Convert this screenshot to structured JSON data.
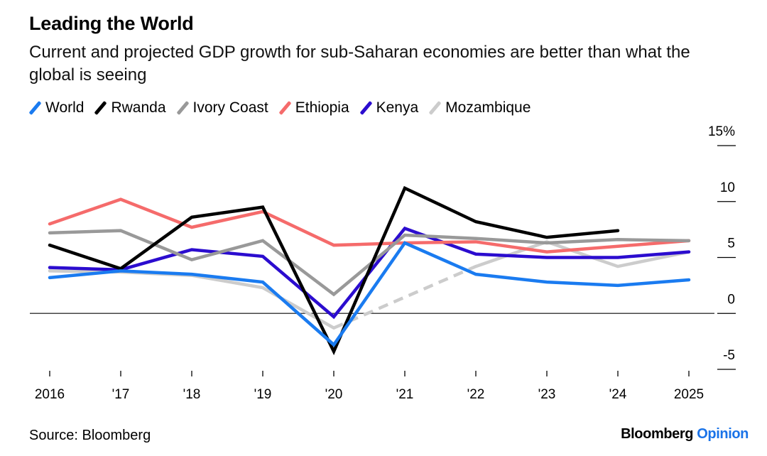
{
  "header": {
    "title": "Leading the World",
    "subtitle": "Current and projected GDP growth for sub-Saharan economies are better than what the global is seeing"
  },
  "footer": {
    "source": "Source: Bloomberg",
    "brand_main": "Bloomberg",
    "brand_accent": "Opinion"
  },
  "chart_data": {
    "type": "line",
    "title": "Leading the World",
    "subtitle": "Current and projected GDP growth for sub-Saharan economies are better than what the global is seeing",
    "xlabel": "",
    "ylabel": "",
    "x": [
      2016,
      2017,
      2018,
      2019,
      2020,
      2021,
      2022,
      2023,
      2024,
      2025
    ],
    "x_tick_labels": [
      "2016",
      "'17",
      "'18",
      "'19",
      "'20",
      "'21",
      "'22",
      "'23",
      "'24",
      "2025"
    ],
    "ylim": [
      -5,
      15
    ],
    "y_ticks": [
      15,
      10,
      5,
      0,
      -5
    ],
    "y_tick_labels": [
      "15%",
      "10",
      "5",
      "0",
      "-5"
    ],
    "y_axis_side": "right",
    "grid": false,
    "zero_line": true,
    "legend_position": "top-left",
    "series": [
      {
        "name": "World",
        "color": "#1a7bf0",
        "values": [
          3.2,
          3.8,
          3.5,
          2.8,
          -2.8,
          6.3,
          3.5,
          2.8,
          2.5,
          3.0
        ]
      },
      {
        "name": "Rwanda",
        "color": "#000000",
        "values": [
          6.1,
          4.0,
          8.6,
          9.5,
          -3.4,
          11.2,
          8.2,
          6.8,
          7.4,
          null
        ]
      },
      {
        "name": "Ivory Coast",
        "color": "#999999",
        "values": [
          7.2,
          7.4,
          4.8,
          6.5,
          1.7,
          7.0,
          6.7,
          6.3,
          6.6,
          6.5
        ]
      },
      {
        "name": "Ethiopia",
        "color": "#f56b6b",
        "values": [
          8.0,
          10.2,
          7.7,
          9.1,
          6.1,
          6.3,
          6.4,
          5.5,
          6.0,
          6.5
        ]
      },
      {
        "name": "Kenya",
        "color": "#2b0ccf",
        "values": [
          4.1,
          3.9,
          5.7,
          5.1,
          -0.3,
          7.6,
          5.3,
          5.0,
          5.0,
          5.5
        ]
      },
      {
        "name": "Mozambique",
        "color": "#cccccc",
        "values": [
          3.8,
          3.7,
          3.4,
          2.3,
          -1.3,
          null,
          4.2,
          6.4,
          4.2,
          5.5
        ],
        "gap_style": "dashed"
      }
    ]
  }
}
